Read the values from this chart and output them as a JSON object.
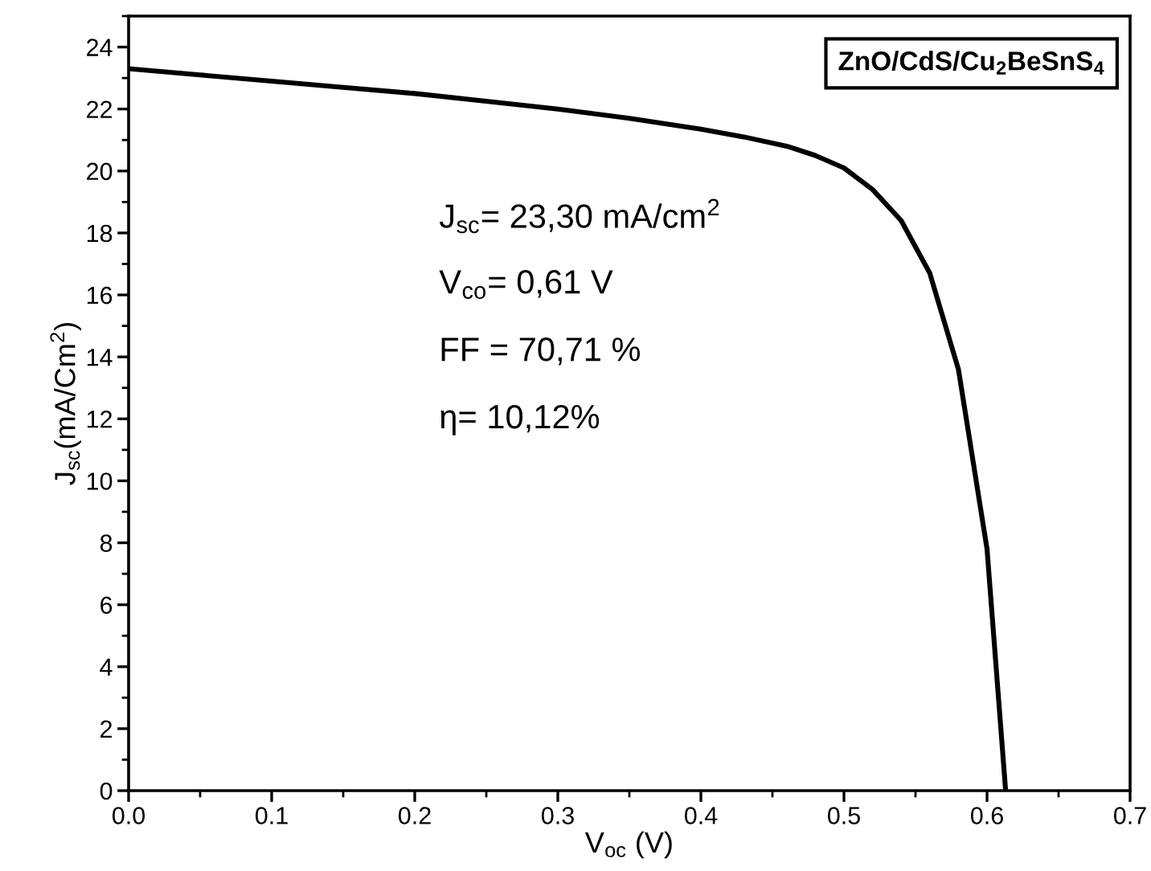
{
  "chart_data": {
    "type": "line",
    "xlabel": "V$_{oc}$ (V)",
    "ylabel": "J$_{sc}$(mA/Cm$^{2}$)",
    "x": [
      0,
      0.05,
      0.1,
      0.15,
      0.2,
      0.25,
      0.3,
      0.35,
      0.4,
      0.43,
      0.46,
      0.48,
      0.5,
      0.52,
      0.54,
      0.56,
      0.58,
      0.6,
      0.613
    ],
    "series": [
      {
        "color": "#000000",
        "values": [
          23.3,
          23.1,
          22.9,
          22.7,
          22.5,
          22.25,
          22.0,
          21.7,
          21.35,
          21.1,
          20.8,
          20.5,
          20.1,
          19.4,
          18.4,
          16.7,
          13.6,
          7.8,
          0
        ]
      }
    ],
    "xlim": [
      0,
      0.7
    ],
    "ylim": [
      0,
      25
    ],
    "xticks": [
      {
        "value": 0,
        "label": "0.0"
      },
      0.1,
      0.2,
      0.3,
      0.4,
      0.5,
      0.6,
      0.7
    ],
    "yticks": [
      0,
      2,
      4,
      6,
      8,
      10,
      12,
      14,
      16,
      18,
      20,
      22,
      24
    ],
    "annotations": [
      "ZnO/CdS/Cu$_{2}$BeSnS$_{4}$",
      "J$_{sc}$= 23,30 mA/cm$^{2}$",
      "V$_{co}$= 0,61 V",
      "FF = 70,71 %",
      "η= 10,12%"
    ],
    "grid": false,
    "legend": false,
    "marker": "none",
    "line_style": "solid"
  }
}
